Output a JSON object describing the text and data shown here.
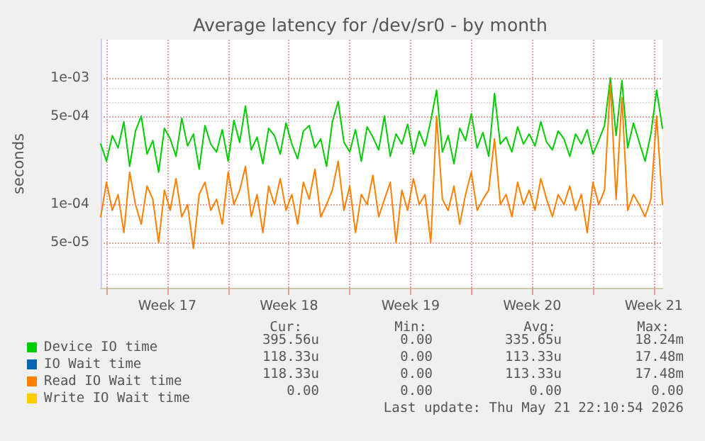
{
  "chart_data": {
    "type": "line",
    "title": "Average latency for /dev/sr0 - by month",
    "ylabel": "seconds",
    "log": "y",
    "grid": true,
    "legend": "bottom",
    "marker": "none",
    "line_style": "solid",
    "xlim": [
      "2026-04-19T16:00",
      "2026-05-22T00:00"
    ],
    "xticks": [
      {
        "value": "2026-04-20",
        "label": null
      },
      {
        "value": "2026-04-23T12:00",
        "label": "Week 17"
      },
      {
        "value": "2026-04-27",
        "label": null
      },
      {
        "value": "2026-04-30T12:00",
        "label": "Week 18"
      },
      {
        "value": "2026-05-04",
        "label": null
      },
      {
        "value": "2026-05-07T12:00",
        "label": "Week 19"
      },
      {
        "value": "2026-05-11",
        "label": null
      },
      {
        "value": "2026-05-14T12:00",
        "label": "Week 20"
      },
      {
        "value": "2026-05-18",
        "label": null
      },
      {
        "value": "2026-05-21T12:00",
        "label": "Week 21"
      }
    ],
    "ylim": [
      2.2e-05,
      0.002
    ],
    "yticks": [
      {
        "value": 5e-05,
        "label": "5e-05"
      },
      {
        "value": 0.0001,
        "label": "1e-04"
      },
      {
        "value": 0.0005,
        "label": "5e-04"
      },
      {
        "value": 0.001,
        "label": "1e-03"
      }
    ],
    "x": [
      "2026-04-19T16:00",
      "2026-04-20T00:00",
      "2026-04-20T08:00",
      "2026-04-20T16:00",
      "2026-04-21T00:00",
      "2026-04-21T08:00",
      "2026-04-21T16:00",
      "2026-04-22T00:00",
      "2026-04-22T08:00",
      "2026-04-22T16:00",
      "2026-04-23T00:00",
      "2026-04-23T08:00",
      "2026-04-23T16:00",
      "2026-04-24T00:00",
      "2026-04-24T08:00",
      "2026-04-24T16:00",
      "2026-04-25T00:00",
      "2026-04-25T08:00",
      "2026-04-25T16:00",
      "2026-04-26T00:00",
      "2026-04-26T08:00",
      "2026-04-26T16:00",
      "2026-04-27T00:00",
      "2026-04-27T08:00",
      "2026-04-27T16:00",
      "2026-04-28T00:00",
      "2026-04-28T08:00",
      "2026-04-28T16:00",
      "2026-04-29T00:00",
      "2026-04-29T08:00",
      "2026-04-29T16:00",
      "2026-04-30T00:00",
      "2026-04-30T08:00",
      "2026-04-30T16:00",
      "2026-05-01T00:00",
      "2026-05-01T08:00",
      "2026-05-01T16:00",
      "2026-05-02T00:00",
      "2026-05-02T08:00",
      "2026-05-02T16:00",
      "2026-05-03T00:00",
      "2026-05-03T08:00",
      "2026-05-03T16:00",
      "2026-05-04T00:00",
      "2026-05-04T08:00",
      "2026-05-04T16:00",
      "2026-05-05T00:00",
      "2026-05-05T08:00",
      "2026-05-05T16:00",
      "2026-05-06T00:00",
      "2026-05-06T08:00",
      "2026-05-06T16:00",
      "2026-05-07T00:00",
      "2026-05-07T08:00",
      "2026-05-07T16:00",
      "2026-05-08T00:00",
      "2026-05-08T08:00",
      "2026-05-08T16:00",
      "2026-05-09T00:00",
      "2026-05-09T08:00",
      "2026-05-09T16:00",
      "2026-05-10T00:00",
      "2026-05-10T08:00",
      "2026-05-10T16:00",
      "2026-05-11T00:00",
      "2026-05-11T08:00",
      "2026-05-11T16:00",
      "2026-05-12T00:00",
      "2026-05-12T08:00",
      "2026-05-12T16:00",
      "2026-05-13T00:00",
      "2026-05-13T08:00",
      "2026-05-13T16:00",
      "2026-05-14T00:00",
      "2026-05-14T08:00",
      "2026-05-14T16:00",
      "2026-05-15T00:00",
      "2026-05-15T08:00",
      "2026-05-15T16:00",
      "2026-05-16T00:00",
      "2026-05-16T08:00",
      "2026-05-16T16:00",
      "2026-05-17T00:00",
      "2026-05-17T08:00",
      "2026-05-17T16:00",
      "2026-05-18T00:00",
      "2026-05-18T08:00",
      "2026-05-18T16:00",
      "2026-05-19T00:00",
      "2026-05-19T08:00",
      "2026-05-19T16:00",
      "2026-05-20T00:00",
      "2026-05-20T08:00",
      "2026-05-20T16:00",
      "2026-05-21T00:00",
      "2026-05-21T08:00",
      "2026-05-21T16:00",
      "2026-05-22T00:00"
    ],
    "series": [
      {
        "name": "Device IO time",
        "color": "#00cc00",
        "values": [
          0.0003,
          0.00022,
          0.00035,
          0.00028,
          0.00045,
          0.0002,
          0.00038,
          0.0005,
          0.00025,
          0.00032,
          0.00018,
          0.0004,
          0.00033,
          0.00024,
          0.00048,
          0.00029,
          0.00036,
          0.00019,
          0.00042,
          0.0003,
          0.00026,
          0.00039,
          0.00022,
          0.00046,
          0.00031,
          0.0006,
          0.00027,
          0.00034,
          0.00021,
          0.0004,
          0.00035,
          0.00025,
          0.00044,
          0.0003,
          0.00023,
          0.00038,
          0.00042,
          0.00028,
          0.00033,
          0.0002,
          0.00045,
          0.00065,
          0.00031,
          0.00026,
          0.00039,
          0.00022,
          0.00041,
          0.00034,
          0.00027,
          0.0005,
          0.00024,
          0.00036,
          0.0003,
          0.00043,
          0.00025,
          0.00038,
          0.00029,
          0.00046,
          0.0008,
          0.00026,
          0.00035,
          0.00021,
          0.0004,
          0.00032,
          0.00052,
          0.00028,
          0.00037,
          0.00024,
          0.00075,
          0.0003,
          0.00034,
          0.00026,
          0.00041,
          0.0003,
          0.00036,
          0.00029,
          0.00045,
          0.00031,
          0.00027,
          0.00038,
          0.00033,
          0.00024,
          0.00036,
          0.0003,
          0.00039,
          0.00025,
          0.00032,
          0.00042,
          0.001,
          0.00035,
          0.00095,
          0.00028,
          0.00044,
          0.00031,
          0.00022,
          0.00036,
          0.0008,
          0.0004
        ]
      },
      {
        "name": "IO Wait time",
        "color": "#0066b3",
        "values": [
          null,
          null,
          null,
          null,
          null,
          null,
          null,
          null,
          null,
          null,
          null,
          null,
          null,
          null,
          null,
          null,
          null,
          null,
          null,
          null,
          null,
          null,
          null,
          null,
          null,
          null,
          null,
          null,
          null,
          null,
          null,
          null,
          null,
          null,
          null,
          null,
          null,
          null,
          null,
          null,
          null,
          null,
          null,
          null,
          null,
          null,
          null,
          null,
          null,
          null,
          null,
          null,
          null,
          null,
          null,
          null,
          null,
          null,
          null,
          null,
          null,
          null,
          null,
          null,
          null,
          null,
          null,
          null,
          null,
          null,
          null,
          null,
          null,
          null,
          null,
          null,
          null,
          null,
          null,
          null,
          null,
          null,
          null,
          null,
          null,
          null,
          null,
          null,
          null,
          null,
          null,
          null,
          null,
          null,
          null,
          null,
          null,
          null
        ]
      },
      {
        "name": "Read IO Wait time",
        "color": "#ff8000",
        "values": [
          8e-05,
          0.00015,
          9e-05,
          0.00012,
          6e-05,
          0.00018,
          0.0001,
          7e-05,
          0.00014,
          0.00011,
          5e-05,
          0.00013,
          9e-05,
          0.00016,
          8e-05,
          0.0001,
          4.5e-05,
          0.00012,
          0.00015,
          9e-05,
          0.00011,
          7e-05,
          0.00018,
          0.0001,
          0.00013,
          0.0002,
          8e-05,
          0.00012,
          6e-05,
          0.00014,
          0.0001,
          0.00016,
          9e-05,
          0.00012,
          7e-05,
          0.00015,
          0.00011,
          0.00019,
          8e-05,
          0.0001,
          0.00013,
          0.00022,
          9e-05,
          0.00014,
          6e-05,
          0.00012,
          0.0001,
          0.00017,
          8e-05,
          0.00011,
          0.00015,
          5e-05,
          0.00013,
          9e-05,
          0.00016,
          0.0001,
          0.00012,
          5e-05,
          0.0005,
          0.00011,
          9e-05,
          0.00014,
          7e-05,
          0.00012,
          0.00018,
          9e-05,
          0.00011,
          0.00013,
          0.00033,
          0.0001,
          0.00012,
          8e-05,
          0.00015,
          0.0001,
          0.00013,
          9e-05,
          0.00016,
          0.00011,
          8e-05,
          0.00012,
          0.0001,
          0.00014,
          9e-05,
          0.00012,
          6e-05,
          0.00015,
          0.0001,
          0.00013,
          0.0009,
          0.00011,
          0.0007,
          9e-05,
          0.00012,
          0.0001,
          8e-05,
          0.00011,
          0.0005,
          0.0001
        ]
      },
      {
        "name": "Write IO Wait time",
        "color": "#ffcc00",
        "values": [
          null,
          null,
          null,
          null,
          null,
          null,
          null,
          null,
          null,
          null,
          null,
          null,
          null,
          null,
          null,
          null,
          null,
          null,
          null,
          null,
          null,
          null,
          null,
          null,
          null,
          null,
          null,
          null,
          null,
          null,
          null,
          null,
          null,
          null,
          null,
          null,
          null,
          null,
          null,
          null,
          null,
          null,
          null,
          null,
          null,
          null,
          null,
          null,
          null,
          null,
          null,
          null,
          null,
          null,
          null,
          null,
          null,
          null,
          null,
          null,
          null,
          null,
          null,
          null,
          null,
          null,
          null,
          null,
          null,
          null,
          null,
          null,
          null,
          null,
          null,
          null,
          null,
          null,
          null,
          null,
          null,
          null,
          null,
          null,
          null,
          null,
          null,
          null,
          null,
          null,
          null,
          null,
          null,
          null,
          null,
          null,
          null,
          null
        ]
      }
    ],
    "annotations": [
      "Cur:",
      "Min:",
      "Avg:",
      "Max:",
      "395.56u",
      "0.00",
      "335.65u",
      "18.24m",
      "118.33u",
      "0.00",
      "113.33u",
      "17.48m",
      "118.33u",
      "0.00",
      "113.33u",
      "17.48m",
      "0.00",
      "0.00",
      "0.00",
      "0.00",
      "Last update: Thu May 21 22:10:54 2026"
    ]
  }
}
